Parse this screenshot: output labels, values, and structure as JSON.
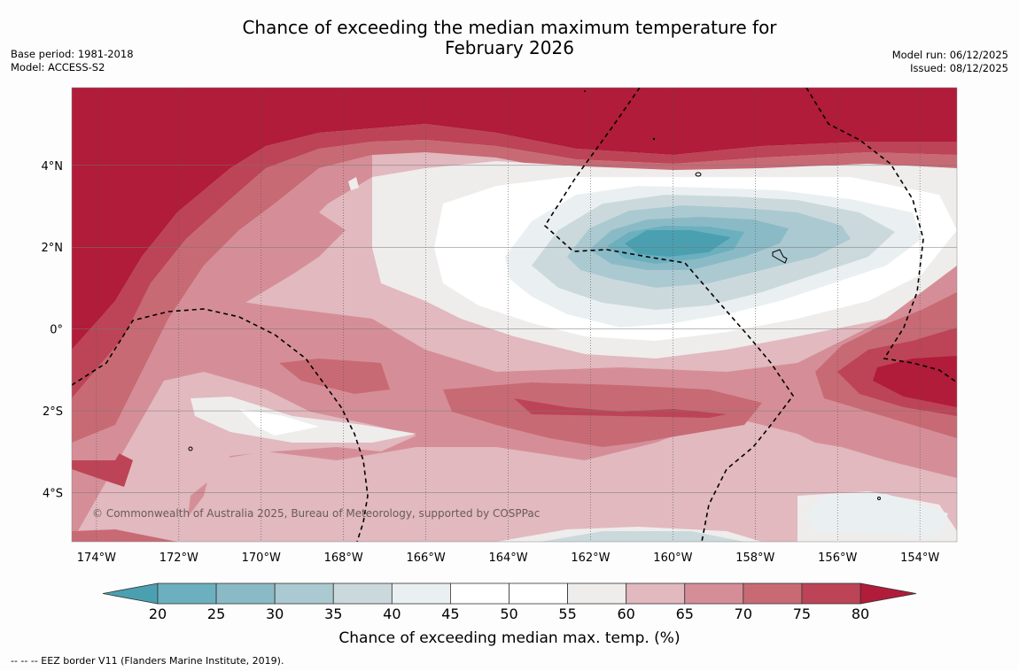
{
  "title": {
    "line1": "Chance of exceeding the median maximum temperature for",
    "line2": "February 2026"
  },
  "meta_left": {
    "base_period": "Base period: 1981-2018",
    "model": "Model: ACCESS-S2"
  },
  "meta_right": {
    "model_run": "Model run: 06/12/2025",
    "issued": "Issued: 08/12/2025"
  },
  "map": {
    "lon_range": [
      -174.6,
      -153.1
    ],
    "lat_range": [
      -5.2,
      5.9
    ],
    "lon_ticks": [
      {
        "value": -174,
        "label": "174°W"
      },
      {
        "value": -172,
        "label": "172°W"
      },
      {
        "value": -170,
        "label": "170°W"
      },
      {
        "value": -168,
        "label": "168°W"
      },
      {
        "value": -166,
        "label": "166°W"
      },
      {
        "value": -164,
        "label": "164°W"
      },
      {
        "value": -162,
        "label": "162°W"
      },
      {
        "value": -160,
        "label": "160°W"
      },
      {
        "value": -158,
        "label": "158°W"
      },
      {
        "value": -156,
        "label": "156°W"
      },
      {
        "value": -154,
        "label": "154°W"
      }
    ],
    "lat_ticks": [
      {
        "value": 4,
        "label": "4°N"
      },
      {
        "value": 2,
        "label": "2°N"
      },
      {
        "value": 0,
        "label": "0°"
      },
      {
        "value": -2,
        "label": "2°S"
      },
      {
        "value": -4,
        "label": "4°S"
      }
    ],
    "copyright": "© Commonwealth of Australia 2025, Bureau of Meteorology, supported by COSPPac"
  },
  "colorbar": {
    "title": "Chance of exceeding median max. temp. (%)",
    "ticks": [
      "20",
      "25",
      "30",
      "35",
      "40",
      "45",
      "50",
      "55",
      "60",
      "65",
      "70",
      "75",
      "80"
    ],
    "colors": [
      "#6cb0bf",
      "#8bbac7",
      "#abc9d0",
      "#cbd9dd",
      "#eaf0f2",
      "#ffffff",
      "#ffffff",
      "#efecec",
      "#e1b9bf",
      "#d58e97",
      "#c86a74",
      "#bc4456"
    ],
    "low_extend_color": "#4aa0b1",
    "high_extend_color": "#b01c3a"
  },
  "footer": "--  --  -- EEZ border V11 (Flanders Marine Institute, 2019)."
}
